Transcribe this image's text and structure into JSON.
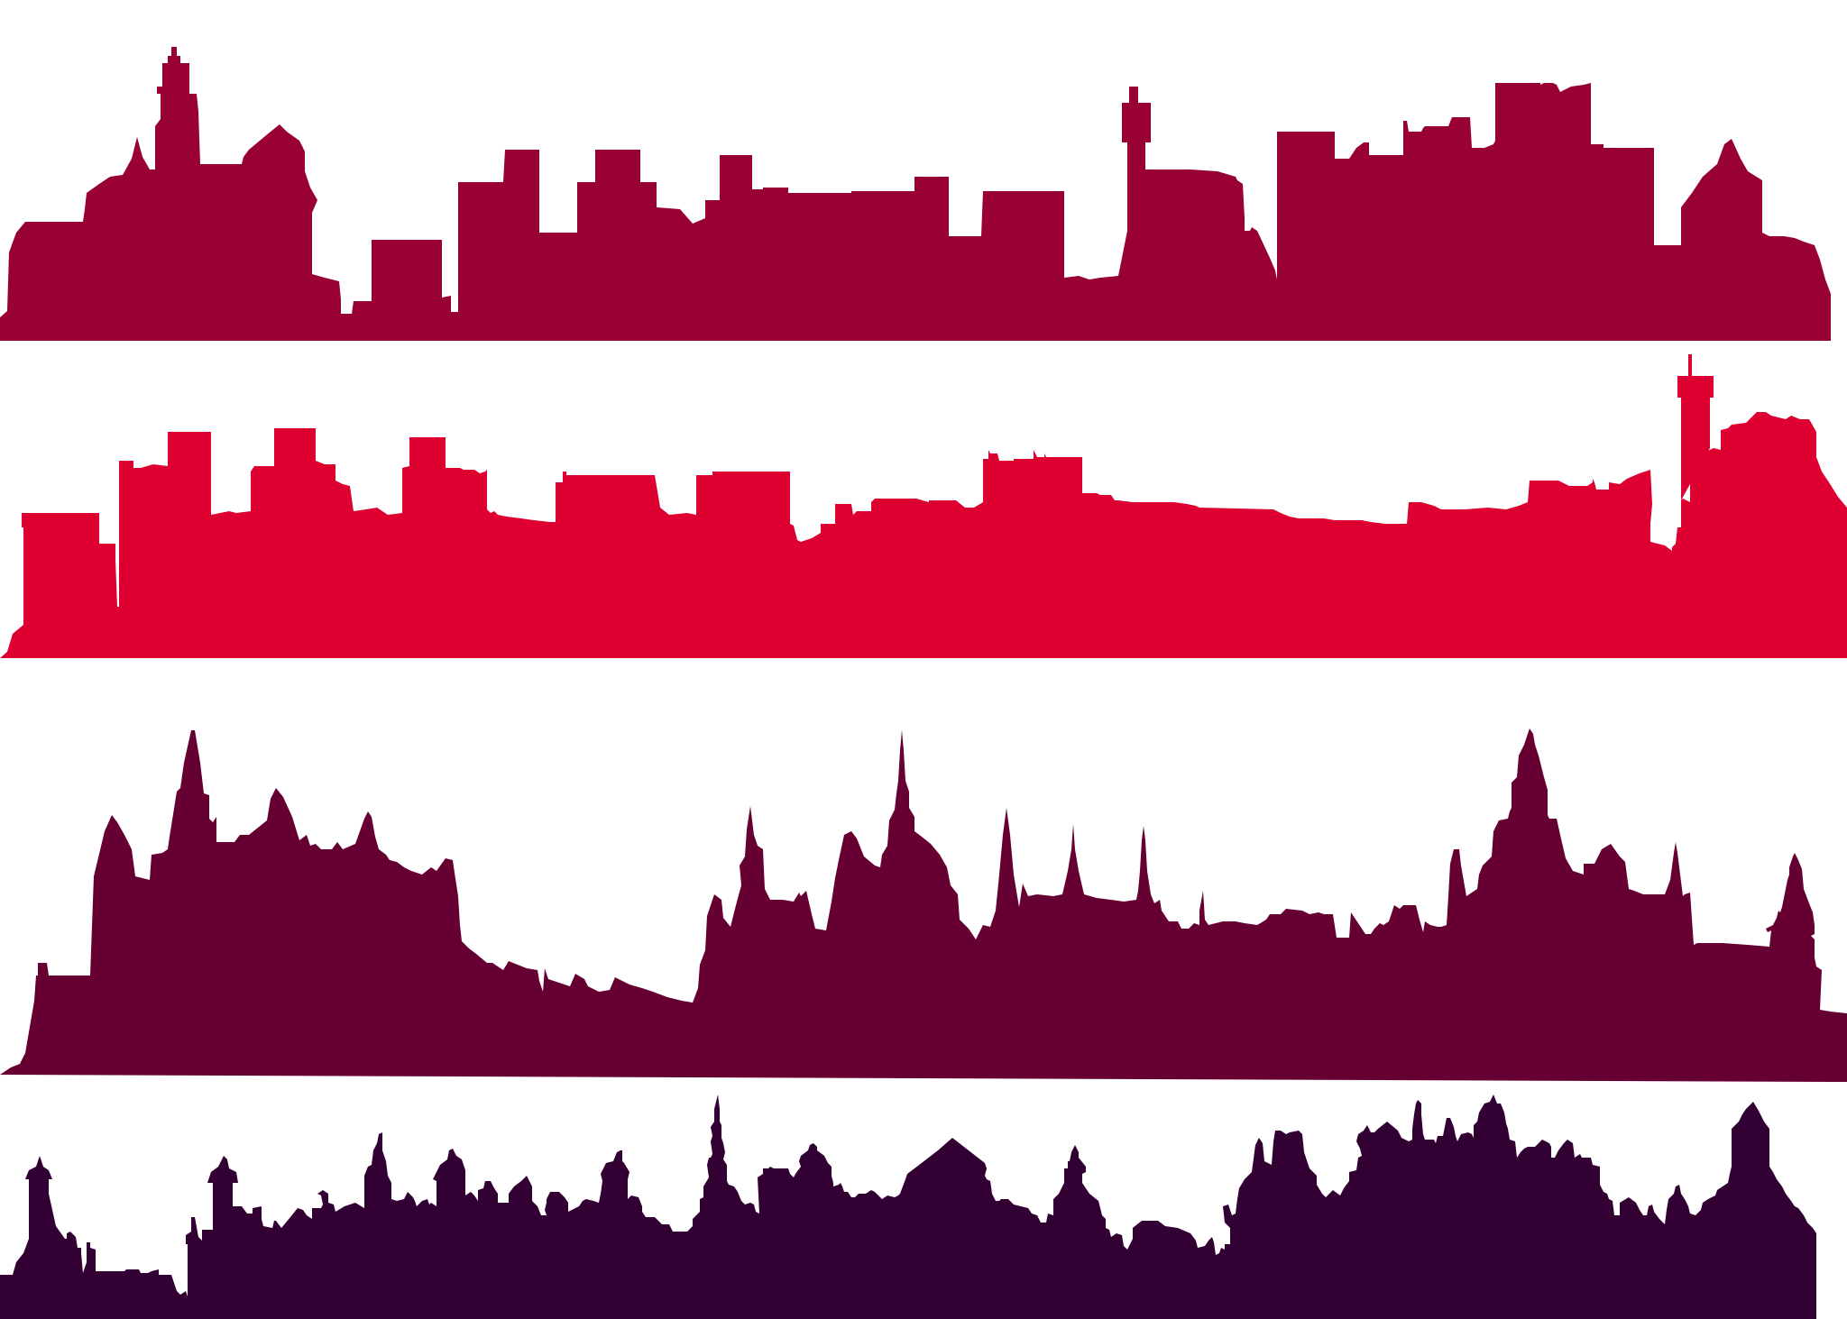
{
  "skylines": [
    {
      "id": "castle-crimson",
      "color": "#990033"
    },
    {
      "id": "castle-red",
      "color": "#DD0030"
    },
    {
      "id": "gothic-plum",
      "color": "#660033"
    },
    {
      "id": "domes-aubergine",
      "color": "#330033"
    }
  ]
}
